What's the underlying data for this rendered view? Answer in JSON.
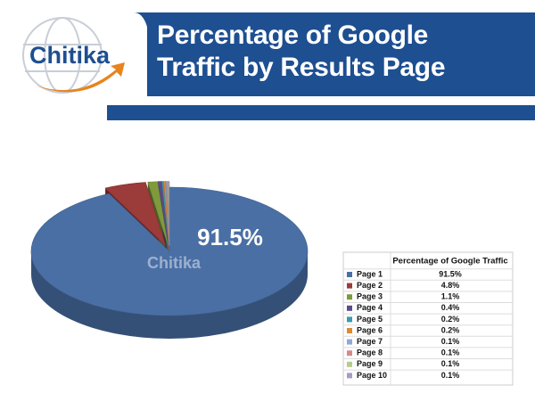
{
  "logo": "Chitika",
  "chart_data": {
    "type": "pie",
    "title": "Percentage of Google Traffic by Results Page",
    "legend_title": "Percentage of Google Traffic",
    "categories": [
      "Page 1",
      "Page 2",
      "Page 3",
      "Page 4",
      "Page 5",
      "Page 6",
      "Page 7",
      "Page 8",
      "Page 9",
      "Page 10"
    ],
    "values": [
      91.5,
      4.8,
      1.1,
      0.4,
      0.2,
      0.2,
      0.1,
      0.1,
      0.1,
      0.1
    ],
    "value_labels": [
      "91.5%",
      "4.8%",
      "1.1%",
      "0.4%",
      "0.2%",
      "0.2%",
      "0.1%",
      "0.1%",
      "0.1%",
      "0.1%"
    ],
    "colors": [
      "#4a6fa5",
      "#9b3b3a",
      "#7f9a3c",
      "#5e4a8a",
      "#3a9bb0",
      "#e08a2e",
      "#8fa8d8",
      "#d88a88",
      "#b8cc8a",
      "#a99ac8"
    ]
  }
}
